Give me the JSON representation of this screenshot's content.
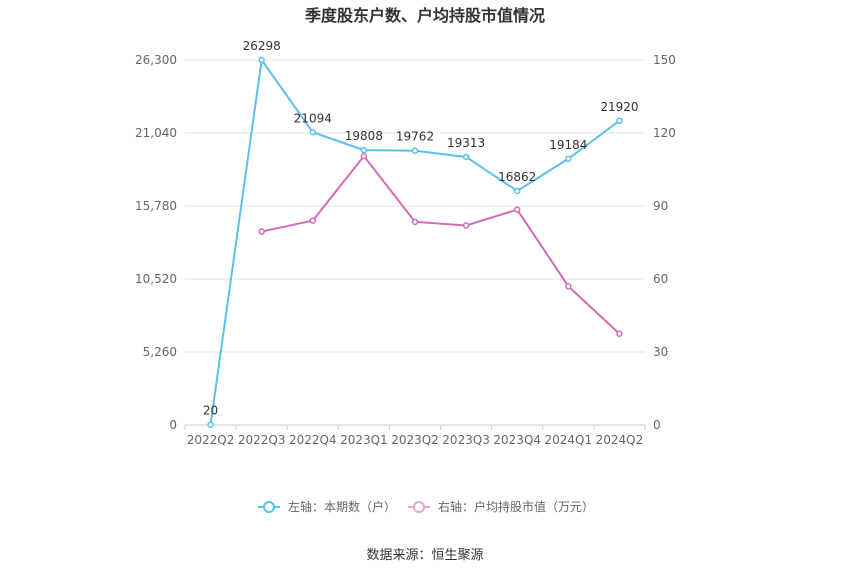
{
  "chart_data": {
    "type": "line",
    "title": "季度股东户数、户均持股市值情况",
    "categories": [
      "2022Q2",
      "2022Q3",
      "2022Q4",
      "2023Q1",
      "2023Q2",
      "2023Q3",
      "2023Q4",
      "2024Q1",
      "2024Q2"
    ],
    "left_axis": {
      "ylim": [
        0,
        26300
      ],
      "ticks": [
        "0",
        "5,260",
        "10,520",
        "15,780",
        "21,040",
        "26,300"
      ]
    },
    "right_axis": {
      "ylim": [
        0,
        150
      ],
      "ticks": [
        "0",
        "30",
        "60",
        "90",
        "120",
        "150"
      ]
    },
    "series": [
      {
        "name": "左轴：本期数（户）",
        "axis": "left",
        "color": "#5bc0eb",
        "values": [
          20,
          26298,
          21094,
          19808,
          19762,
          19313,
          16862,
          19184,
          21920
        ],
        "labels": [
          "20",
          "26298",
          "21094",
          "19808",
          "19762",
          "19313",
          "16862",
          "19184",
          "21920"
        ]
      },
      {
        "name": "右轴：户均持股市值（万元）",
        "axis": "right",
        "color": "#d36bb6",
        "legend_color": "#e8a4d3",
        "values": [
          null,
          79.5,
          84,
          110.5,
          83.5,
          82,
          88.5,
          57,
          37.5
        ]
      }
    ],
    "grid": true,
    "legend_position": "bottom",
    "source": "数据来源：恒生聚源"
  }
}
